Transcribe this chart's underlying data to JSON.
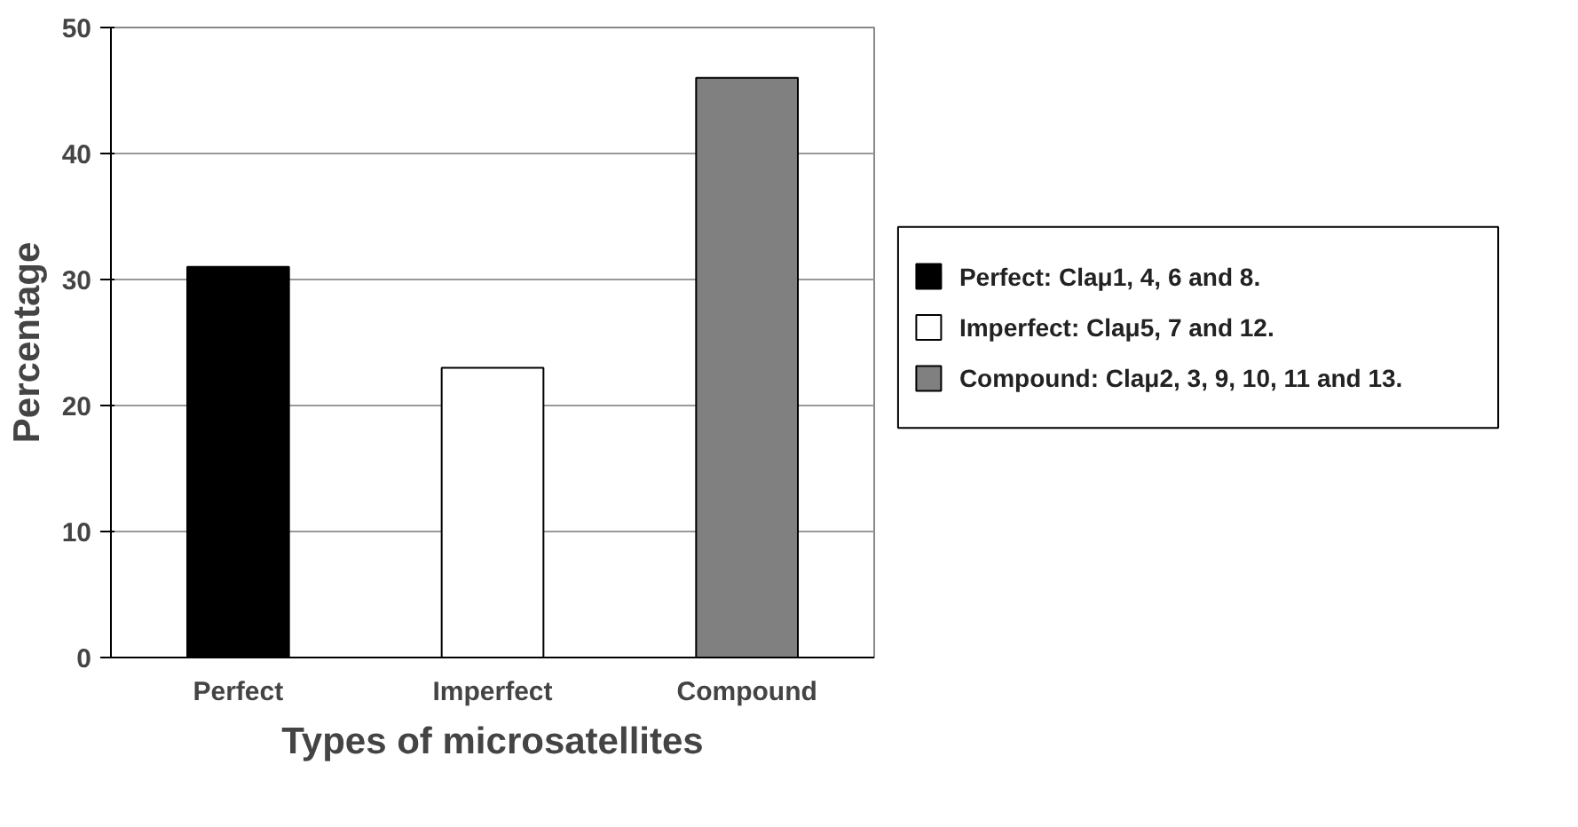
{
  "chart_data": {
    "type": "bar",
    "xlabel": "Types of microsatellites",
    "ylabel": "Percentage",
    "categories": [
      "Perfect",
      "Imperfect",
      "Compound"
    ],
    "series": [
      {
        "name": "Perfect: Claμ1, 4, 6 and 8.",
        "color": "#000000",
        "values": [
          31,
          null,
          null
        ]
      },
      {
        "name": "Imperfect: Claμ5, 7 and 12.",
        "color": "#ffffff",
        "values": [
          null,
          23,
          null
        ]
      },
      {
        "name": "Compound: Claμ2, 3, 9, 10, 11 and 13.",
        "color": "#808080",
        "values": [
          null,
          null,
          46
        ]
      }
    ],
    "ylim": [
      0,
      50
    ],
    "yticks": [
      0,
      10,
      20,
      30,
      40,
      50
    ],
    "grid": "y",
    "legend": "right"
  }
}
